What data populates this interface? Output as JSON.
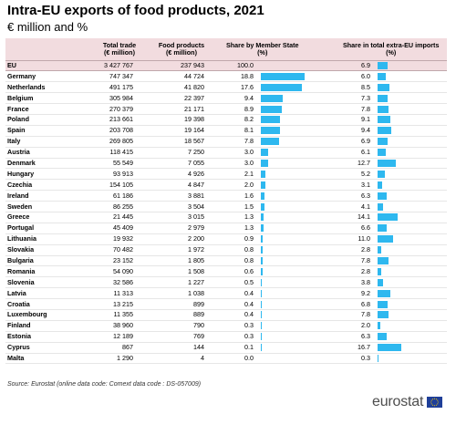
{
  "header": {
    "title": "Intra-EU exports of food products, 2021",
    "subtitle": "€ million and %"
  },
  "colors": {
    "bar": "#2eb8ef",
    "header_bg": "#f2dcdf"
  },
  "chart_data": {
    "type": "table",
    "title": "Intra-EU exports of food products, 2021",
    "subtitle": "€ million and %",
    "columns": [
      "",
      "Total trade (€ million)",
      "Food products (€ million)",
      "Share by Member State (%)",
      "Share in total extra-EU imports (%)"
    ],
    "rows": [
      {
        "country": "EU",
        "total_trade": "3 427 767",
        "food_products": "237 943",
        "share_ms": 100.0,
        "share_ms_label": "100.0",
        "share_extra": 6.9,
        "share_extra_label": "6.9"
      },
      {
        "country": "Germany",
        "total_trade": "747 347",
        "food_products": "44 724",
        "share_ms": 18.8,
        "share_ms_label": "18.8",
        "share_extra": 6.0,
        "share_extra_label": "6.0"
      },
      {
        "country": "Netherlands",
        "total_trade": "491 175",
        "food_products": "41 820",
        "share_ms": 17.6,
        "share_ms_label": "17.6",
        "share_extra": 8.5,
        "share_extra_label": "8.5"
      },
      {
        "country": "Belgium",
        "total_trade": "305 984",
        "food_products": "22 397",
        "share_ms": 9.4,
        "share_ms_label": "9.4",
        "share_extra": 7.3,
        "share_extra_label": "7.3"
      },
      {
        "country": "France",
        "total_trade": "270 379",
        "food_products": "21 171",
        "share_ms": 8.9,
        "share_ms_label": "8.9",
        "share_extra": 7.8,
        "share_extra_label": "7.8"
      },
      {
        "country": "Poland",
        "total_trade": "213 661",
        "food_products": "19 398",
        "share_ms": 8.2,
        "share_ms_label": "8.2",
        "share_extra": 9.1,
        "share_extra_label": "9.1"
      },
      {
        "country": "Spain",
        "total_trade": "203 708",
        "food_products": "19 164",
        "share_ms": 8.1,
        "share_ms_label": "8.1",
        "share_extra": 9.4,
        "share_extra_label": "9.4"
      },
      {
        "country": "Italy",
        "total_trade": "269 805",
        "food_products": "18 567",
        "share_ms": 7.8,
        "share_ms_label": "7.8",
        "share_extra": 6.9,
        "share_extra_label": "6.9"
      },
      {
        "country": "Austria",
        "total_trade": "118 415",
        "food_products": "7 250",
        "share_ms": 3.0,
        "share_ms_label": "3.0",
        "share_extra": 6.1,
        "share_extra_label": "6.1"
      },
      {
        "country": "Denmark",
        "total_trade": "55 549",
        "food_products": "7 055",
        "share_ms": 3.0,
        "share_ms_label": "3.0",
        "share_extra": 12.7,
        "share_extra_label": "12.7"
      },
      {
        "country": "Hungary",
        "total_trade": "93 913",
        "food_products": "4 926",
        "share_ms": 2.1,
        "share_ms_label": "2.1",
        "share_extra": 5.2,
        "share_extra_label": "5.2"
      },
      {
        "country": "Czechia",
        "total_trade": "154 105",
        "food_products": "4 847",
        "share_ms": 2.0,
        "share_ms_label": "2.0",
        "share_extra": 3.1,
        "share_extra_label": "3.1"
      },
      {
        "country": "Ireland",
        "total_trade": "61 186",
        "food_products": "3 881",
        "share_ms": 1.6,
        "share_ms_label": "1.6",
        "share_extra": 6.3,
        "share_extra_label": "6.3"
      },
      {
        "country": "Sweden",
        "total_trade": "86 255",
        "food_products": "3 504",
        "share_ms": 1.5,
        "share_ms_label": "1.5",
        "share_extra": 4.1,
        "share_extra_label": "4.1"
      },
      {
        "country": "Greece",
        "total_trade": "21 445",
        "food_products": "3 015",
        "share_ms": 1.3,
        "share_ms_label": "1.3",
        "share_extra": 14.1,
        "share_extra_label": "14.1"
      },
      {
        "country": "Portugal",
        "total_trade": "45 409",
        "food_products": "2 979",
        "share_ms": 1.3,
        "share_ms_label": "1.3",
        "share_extra": 6.6,
        "share_extra_label": "6.6"
      },
      {
        "country": "Lithuania",
        "total_trade": "19 932",
        "food_products": "2 200",
        "share_ms": 0.9,
        "share_ms_label": "0.9",
        "share_extra": 11.0,
        "share_extra_label": "11.0"
      },
      {
        "country": "Slovakia",
        "total_trade": "70 482",
        "food_products": "1 972",
        "share_ms": 0.8,
        "share_ms_label": "0.8",
        "share_extra": 2.8,
        "share_extra_label": "2.8"
      },
      {
        "country": "Bulgaria",
        "total_trade": "23 152",
        "food_products": "1 805",
        "share_ms": 0.8,
        "share_ms_label": "0.8",
        "share_extra": 7.8,
        "share_extra_label": "7.8"
      },
      {
        "country": "Romania",
        "total_trade": "54 090",
        "food_products": "1 508",
        "share_ms": 0.6,
        "share_ms_label": "0.6",
        "share_extra": 2.8,
        "share_extra_label": "2.8"
      },
      {
        "country": "Slovenia",
        "total_trade": "32 586",
        "food_products": "1 227",
        "share_ms": 0.5,
        "share_ms_label": "0.5",
        "share_extra": 3.8,
        "share_extra_label": "3.8"
      },
      {
        "country": "Latvia",
        "total_trade": "11 313",
        "food_products": "1 038",
        "share_ms": 0.4,
        "share_ms_label": "0.4",
        "share_extra": 9.2,
        "share_extra_label": "9.2"
      },
      {
        "country": "Croatia",
        "total_trade": "13 215",
        "food_products": "899",
        "share_ms": 0.4,
        "share_ms_label": "0.4",
        "share_extra": 6.8,
        "share_extra_label": "6.8"
      },
      {
        "country": "Luxembourg",
        "total_trade": "11 355",
        "food_products": "889",
        "share_ms": 0.4,
        "share_ms_label": "0.4",
        "share_extra": 7.8,
        "share_extra_label": "7.8"
      },
      {
        "country": "Finland",
        "total_trade": "38 960",
        "food_products": "790",
        "share_ms": 0.3,
        "share_ms_label": "0.3",
        "share_extra": 2.0,
        "share_extra_label": "2.0"
      },
      {
        "country": "Estonia",
        "total_trade": "12 189",
        "food_products": "769",
        "share_ms": 0.3,
        "share_ms_label": "0.3",
        "share_extra": 6.3,
        "share_extra_label": "6.3"
      },
      {
        "country": "Cyprus",
        "total_trade": "867",
        "food_products": "144",
        "share_ms": 0.1,
        "share_ms_label": "0.1",
        "share_extra": 16.7,
        "share_extra_label": "16.7"
      },
      {
        "country": "Malta",
        "total_trade": "1 290",
        "food_products": "4",
        "share_ms": 0.0,
        "share_ms_label": "0.0",
        "share_extra": 0.3,
        "share_extra_label": "0.3"
      }
    ],
    "bar_scale": {
      "share_ms_max": 18.8,
      "share_extra_max": 16.7
    }
  },
  "table": {
    "head": {
      "col1": "Total trade\n(€ million)",
      "col2": "Food products\n(€ million)",
      "col3": "Share by Member State\n(%)",
      "col4": "Share in total extra-EU imports\n(%)"
    }
  },
  "footer": {
    "source": "Source: Eurostat (online data code: Comext data code : DS-057009)",
    "logo_text": "eurostat"
  }
}
